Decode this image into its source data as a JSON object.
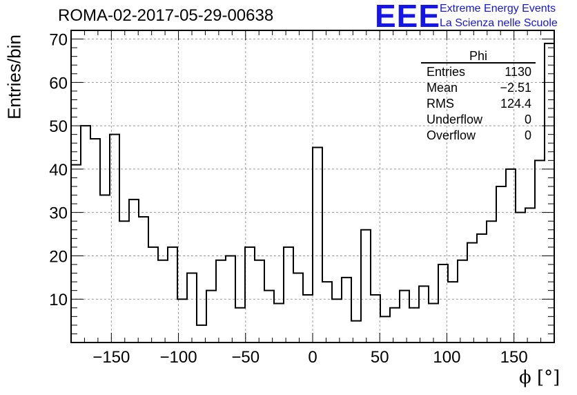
{
  "header": {
    "run_title": "ROMA-02-2017-05-29-00638",
    "logo_text": "EEE",
    "logo_line1": "Extreme Energy Events",
    "logo_line2": "La Scienza nelle Scuole",
    "logo_color": "#1515e6"
  },
  "stats_box": {
    "title": "Phi",
    "rows": [
      {
        "name": "Entries",
        "value": "1130"
      },
      {
        "name": "Mean",
        "value": "−2.51"
      },
      {
        "name": "RMS",
        "value": "124.4"
      },
      {
        "name": "Underflow",
        "value": "0"
      },
      {
        "name": "Overflow",
        "value": "0"
      }
    ]
  },
  "chart_data": {
    "type": "bar",
    "style": "step-histogram",
    "ylabel": "Entries/bin",
    "xlabel": "ϕ [°]",
    "xlim": [
      -180,
      180
    ],
    "ylim": [
      0,
      72
    ],
    "grid": true,
    "legend_placement": "top-right",
    "x_ticks": [
      -150,
      -100,
      -50,
      0,
      50,
      100,
      150
    ],
    "x_tick_labels": [
      "−150",
      "−100",
      "−50",
      "0",
      "50",
      "100",
      "150"
    ],
    "y_ticks": [
      10,
      20,
      30,
      40,
      50,
      60,
      70
    ],
    "y_tick_labels": [
      "10",
      "20",
      "30",
      "40",
      "50",
      "60",
      "70"
    ],
    "bin_edges_start": -180,
    "bin_width": 7.2,
    "values": [
      41,
      50,
      47,
      34,
      48,
      28,
      33,
      29,
      22,
      19,
      22,
      10,
      16,
      4,
      12,
      19,
      20,
      8,
      22,
      19,
      12,
      9,
      22,
      16,
      11,
      45,
      14,
      10,
      15,
      5,
      26,
      11,
      6,
      8,
      12,
      8,
      13,
      9,
      18,
      14,
      19,
      23,
      25,
      28,
      36,
      40,
      30,
      31,
      42,
      69
    ]
  }
}
